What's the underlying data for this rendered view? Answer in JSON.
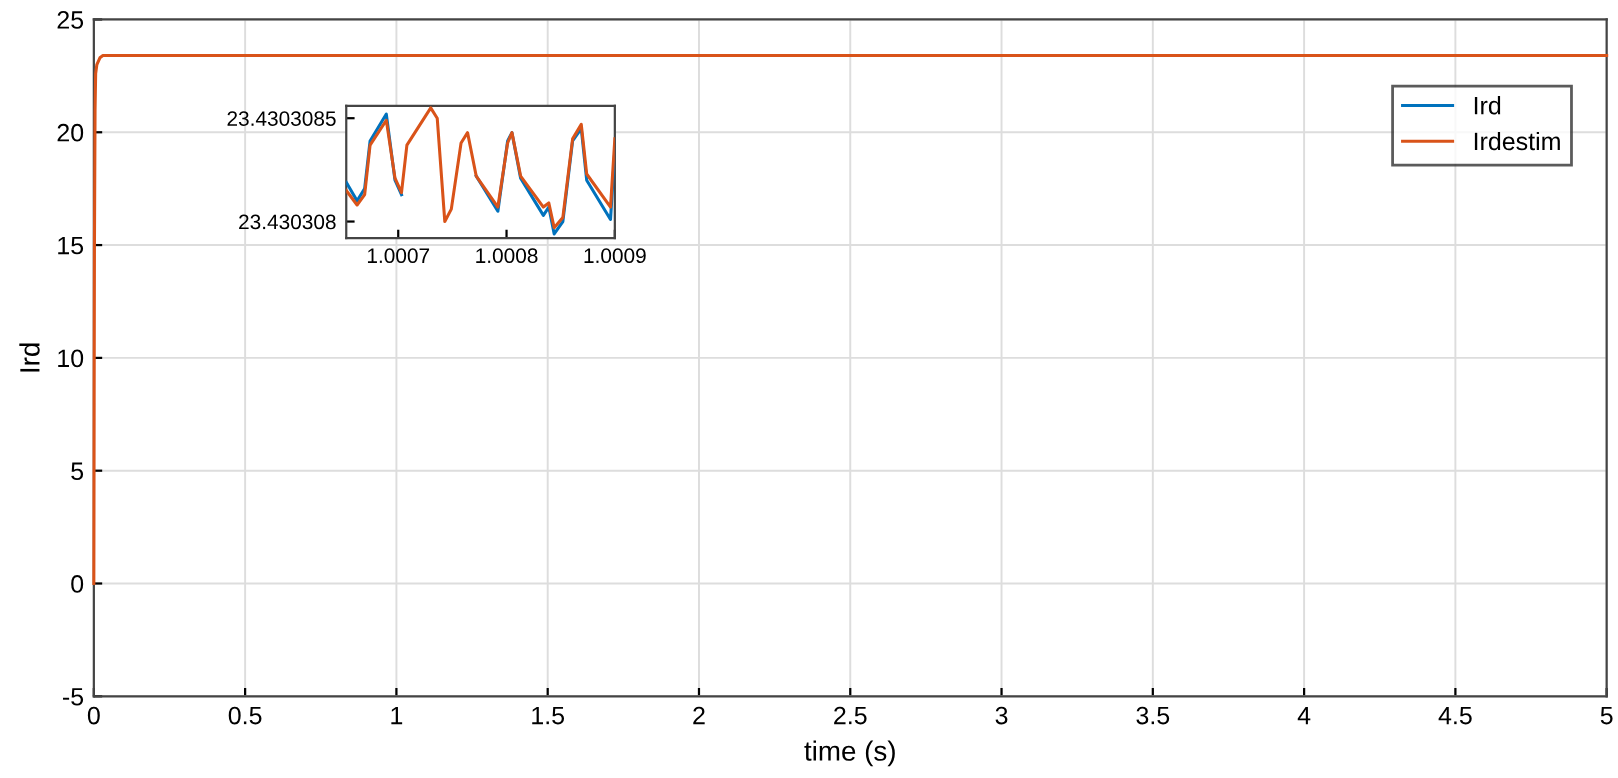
{
  "chart_data": [
    {
      "type": "line",
      "xlabel": "time (s)",
      "ylabel": "Ird",
      "xlim": [
        0,
        5
      ],
      "ylim": [
        -5,
        25
      ],
      "xticks": [
        0,
        0.5,
        1,
        1.5,
        2,
        2.5,
        3,
        3.5,
        4,
        4.5,
        5
      ],
      "yticks": [
        -5,
        0,
        5,
        10,
        15,
        20,
        25
      ],
      "grid": true,
      "legend": "top right",
      "x": [
        0,
        0.001,
        0.002,
        0.004,
        0.006,
        0.01,
        0.02,
        0.03,
        0.05,
        0.08,
        0.1,
        1,
        2,
        3,
        4,
        5
      ],
      "series": [
        {
          "name": "Ird",
          "color": "#0072bd",
          "values": [
            null,
            null,
            null,
            null,
            null,
            null,
            null,
            null,
            null,
            null,
            null,
            null,
            null,
            null,
            null,
            null
          ]
        },
        {
          "name": "Irdestim",
          "color": "#d95319",
          "values": [
            0,
            8,
            15,
            21,
            22.6,
            23.0,
            23.3,
            23.4,
            23.4,
            23.4,
            23.4,
            23.4,
            23.4,
            23.4,
            23.4,
            23.4
          ]
        }
      ]
    },
    {
      "type": "line",
      "xlim": [
        1.000652,
        1.0009
      ],
      "ylim": [
        23.43030792,
        23.43030856
      ],
      "xticks": [
        1.0007,
        1.0008,
        1.0009
      ],
      "yticks": [
        23.430308,
        23.4303085
      ],
      "x": [
        1.000652,
        1.000662,
        1.000669,
        1.000674,
        1.000689,
        1.000697,
        1.000703,
        1.000708,
        1.00073,
        1.000736,
        1.000743,
        1.000749,
        1.000758,
        1.000764,
        1.000772,
        1.000792,
        1.000801,
        1.000805,
        1.000813,
        1.000834,
        1.000839,
        1.000844,
        1.000852,
        1.000861,
        1.000869,
        1.000874,
        1.000896,
        1.0009
      ],
      "series": [
        {
          "color": "#0072bd",
          "values": [
            23.43030819,
            23.4303081,
            23.43030816,
            23.43030839,
            23.43030852,
            23.4303082,
            23.43030813,
            null,
            null,
            null,
            null,
            null,
            null,
            null,
            23.43030822,
            23.43030805,
            23.43030839,
            23.43030843,
            23.43030821,
            23.43030803,
            23.43030807,
            23.43030794,
            23.430308,
            23.43030839,
            23.43030845,
            23.4303082,
            23.43030801,
            23.43030835
          ]
        },
        {
          "color": "#d95319",
          "values": [
            23.43030815,
            23.43030808,
            23.43030813,
            23.43030837,
            23.43030849,
            23.43030821,
            23.43030814,
            23.43030837,
            23.43030855,
            23.4303085,
            23.430308,
            23.43030806,
            23.43030838,
            23.43030843,
            23.43030822,
            23.43030807,
            23.43030838,
            23.43030843,
            23.43030822,
            23.43030807,
            23.43030809,
            23.43030797,
            23.43030802,
            23.4303084,
            23.43030847,
            23.43030823,
            23.43030807,
            23.4303084
          ]
        }
      ]
    }
  ]
}
